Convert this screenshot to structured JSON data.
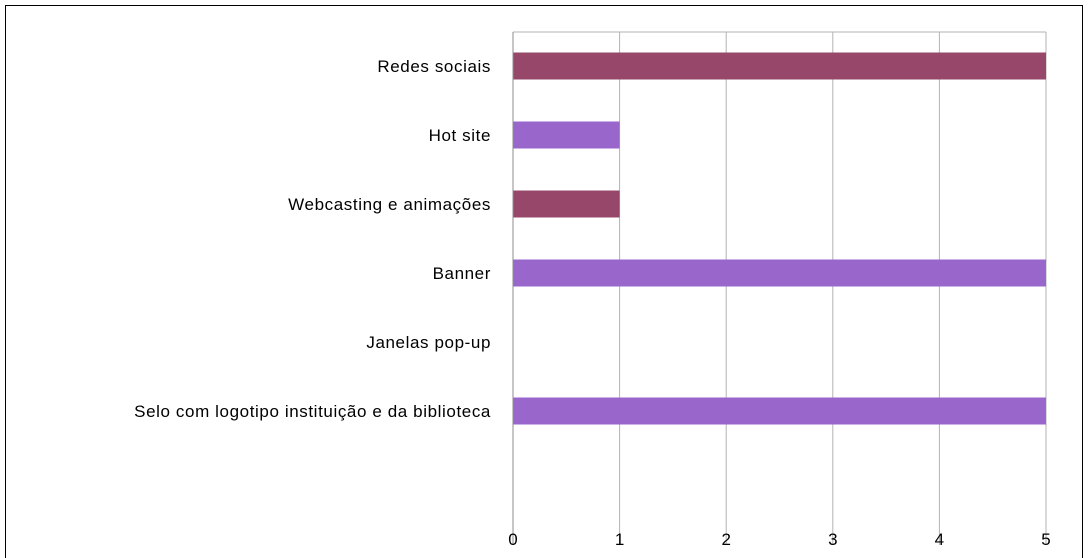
{
  "chart_data": {
    "type": "bar",
    "orientation": "horizontal",
    "categories": [
      "Redes sociais",
      "Hot site",
      "Webcasting e animações",
      "Banner",
      "Janelas pop-up",
      "Selo com logotipo instituição e da biblioteca"
    ],
    "values": [
      5,
      1,
      1,
      5,
      0,
      5
    ],
    "bar_colors": [
      "#96476a",
      "#9966cc",
      "#96476a",
      "#9966cc",
      "#9966cc",
      "#9966cc"
    ],
    "xlim": [
      0,
      5
    ],
    "x_ticks": [
      "0",
      "1",
      "2",
      "3",
      "4",
      "5"
    ],
    "grid": true,
    "title": "",
    "xlabel": "",
    "ylabel": ""
  }
}
